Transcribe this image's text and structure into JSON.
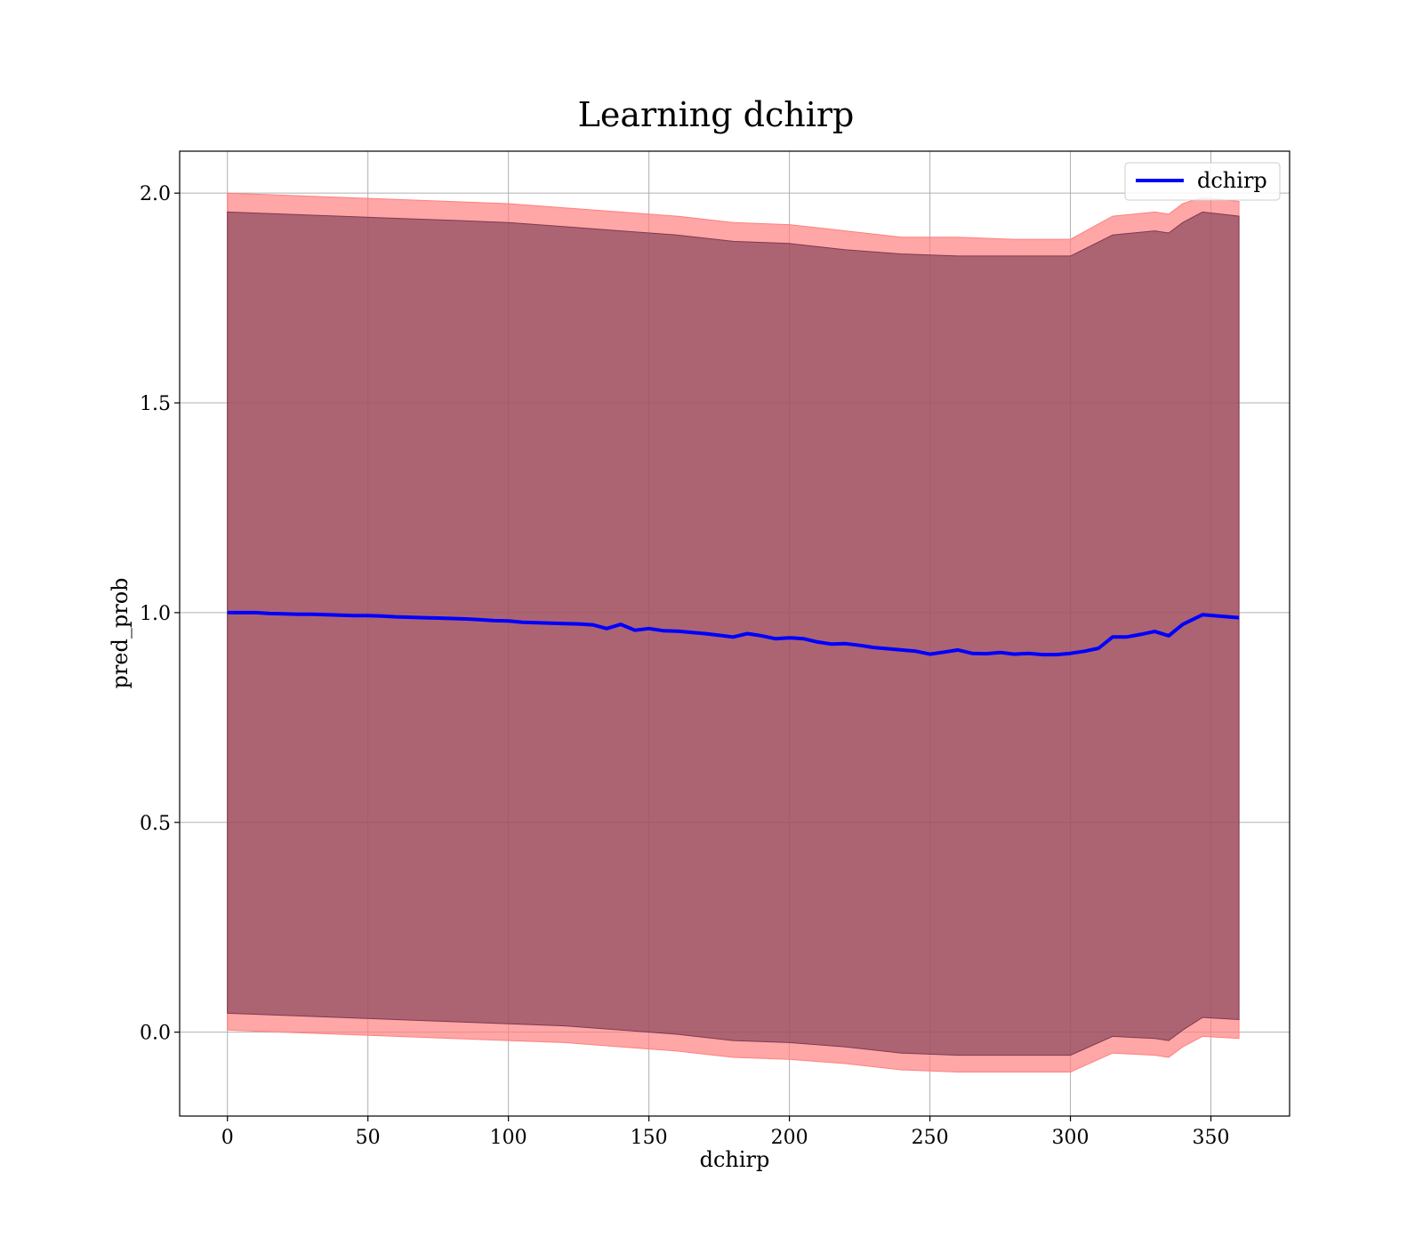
{
  "chart_data": {
    "type": "line",
    "title": "Learning dchirp",
    "xlabel": "dchirp",
    "ylabel": "pred_prob",
    "xlim": [
      -17,
      378
    ],
    "ylim": [
      -0.2,
      2.1
    ],
    "xticks": [
      0,
      50,
      100,
      150,
      200,
      250,
      300,
      350
    ],
    "xtick_labels": [
      "0",
      "50",
      "100",
      "150",
      "200",
      "250",
      "300",
      "350"
    ],
    "yticks": [
      0.0,
      0.5,
      1.0,
      1.5,
      2.0
    ],
    "ytick_labels": [
      "0.0",
      "0.5",
      "1.0",
      "1.5",
      "2.0"
    ],
    "grid": true,
    "legend_position": "upper right",
    "series": [
      {
        "name": "dchirp",
        "color": "#0000ff",
        "x": [
          0,
          10,
          15,
          20,
          25,
          30,
          35,
          40,
          45,
          50,
          55,
          60,
          65,
          70,
          75,
          80,
          85,
          90,
          95,
          100,
          105,
          110,
          115,
          120,
          125,
          130,
          135,
          140,
          145,
          150,
          155,
          160,
          165,
          170,
          175,
          180,
          185,
          190,
          195,
          200,
          205,
          210,
          215,
          220,
          225,
          230,
          235,
          240,
          245,
          250,
          255,
          260,
          265,
          270,
          275,
          280,
          285,
          290,
          295,
          300,
          305,
          310,
          315,
          320,
          325,
          330,
          335,
          340,
          347,
          360
        ],
        "y": [
          1.0,
          1.0,
          0.998,
          0.997,
          0.996,
          0.996,
          0.995,
          0.994,
          0.993,
          0.993,
          0.992,
          0.99,
          0.989,
          0.988,
          0.987,
          0.986,
          0.985,
          0.983,
          0.981,
          0.98,
          0.977,
          0.976,
          0.975,
          0.974,
          0.973,
          0.971,
          0.962,
          0.972,
          0.958,
          0.962,
          0.957,
          0.956,
          0.953,
          0.95,
          0.946,
          0.942,
          0.95,
          0.945,
          0.938,
          0.94,
          0.938,
          0.93,
          0.925,
          0.926,
          0.922,
          0.917,
          0.914,
          0.911,
          0.908,
          0.901,
          0.906,
          0.911,
          0.903,
          0.902,
          0.905,
          0.901,
          0.903,
          0.9,
          0.9,
          0.903,
          0.908,
          0.915,
          0.942,
          0.942,
          0.948,
          0.955,
          0.945,
          0.972,
          0.995,
          0.988
        ]
      }
    ],
    "band_outer": {
      "color": "#ff8080",
      "opacity": 0.7,
      "x": [
        0,
        20,
        40,
        60,
        80,
        100,
        120,
        140,
        160,
        180,
        200,
        220,
        240,
        260,
        280,
        300,
        315,
        330,
        335,
        340,
        347,
        360
      ],
      "upper": [
        2.0,
        1.995,
        1.99,
        1.985,
        1.98,
        1.975,
        1.965,
        1.955,
        1.945,
        1.93,
        1.925,
        1.91,
        1.895,
        1.895,
        1.89,
        1.89,
        1.945,
        1.955,
        1.95,
        1.975,
        1.99,
        1.98
      ],
      "lower": [
        0.005,
        0.0,
        -0.005,
        -0.01,
        -0.015,
        -0.02,
        -0.025,
        -0.035,
        -0.045,
        -0.06,
        -0.065,
        -0.075,
        -0.09,
        -0.095,
        -0.095,
        -0.095,
        -0.05,
        -0.055,
        -0.06,
        -0.035,
        -0.01,
        -0.015
      ]
    },
    "band_inner": {
      "color": "#7b3b52",
      "opacity": 0.62,
      "x": [
        0,
        20,
        40,
        60,
        80,
        100,
        120,
        140,
        160,
        180,
        200,
        220,
        240,
        260,
        280,
        300,
        315,
        330,
        335,
        340,
        347,
        360
      ],
      "upper": [
        1.955,
        1.95,
        1.945,
        1.94,
        1.935,
        1.93,
        1.92,
        1.91,
        1.9,
        1.885,
        1.88,
        1.865,
        1.855,
        1.85,
        1.85,
        1.85,
        1.9,
        1.91,
        1.905,
        1.93,
        1.955,
        1.945
      ],
      "lower": [
        0.045,
        0.04,
        0.035,
        0.03,
        0.025,
        0.02,
        0.015,
        0.005,
        -0.005,
        -0.02,
        -0.025,
        -0.035,
        -0.05,
        -0.055,
        -0.055,
        -0.055,
        -0.01,
        -0.015,
        -0.02,
        0.005,
        0.035,
        0.03
      ]
    }
  }
}
